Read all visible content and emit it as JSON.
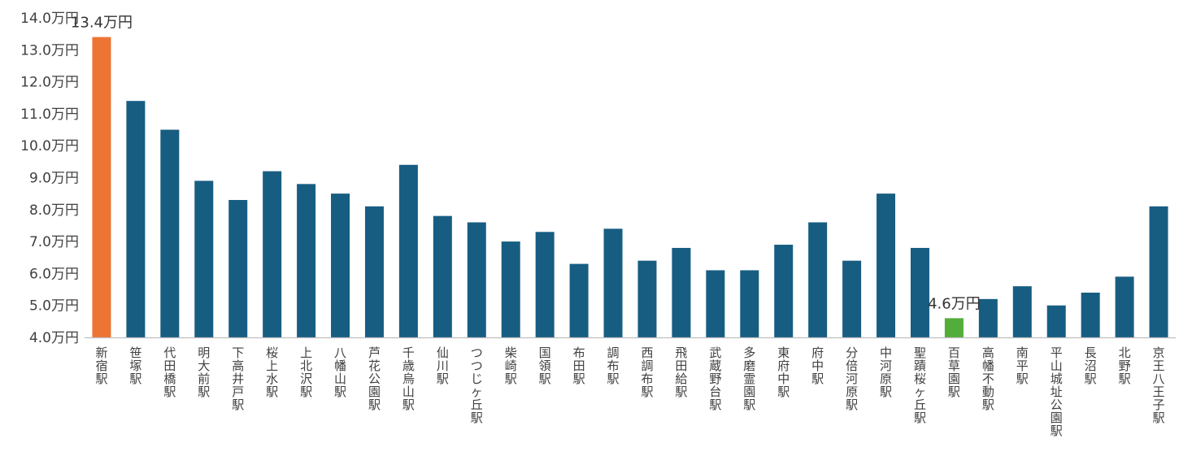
{
  "chart_data": {
    "type": "bar",
    "title": "",
    "xlabel": "",
    "ylabel": "",
    "ylim": [
      4.0,
      14.0
    ],
    "y_unit": "万円",
    "y_ticks": [
      "4.0万円",
      "5.0万円",
      "6.0万円",
      "7.0万円",
      "8.0万円",
      "9.0万円",
      "10.0万円",
      "11.0万円",
      "12.0万円",
      "13.0万円",
      "14.0万円"
    ],
    "y_tick_values": [
      4,
      5,
      6,
      7,
      8,
      9,
      10,
      11,
      12,
      13,
      14
    ],
    "grid": false,
    "legend": "none",
    "categories": [
      "新宿駅",
      "笹塚駅",
      "代田橋駅",
      "明大前駅",
      "下高井戸駅",
      "桜上水駅",
      "上北沢駅",
      "八幡山駅",
      "芦花公園駅",
      "千歳烏山駅",
      "仙川駅",
      "つつじヶ丘駅",
      "柴崎駅",
      "国領駅",
      "布田駅",
      "調布駅",
      "西調布駅",
      "飛田給駅",
      "武蔵野台駅",
      "多磨霊園駅",
      "東府中駅",
      "府中駅",
      "分倍河原駅",
      "中河原駅",
      "聖蹟桜ヶ丘駅",
      "百草園駅",
      "高幡不動駅",
      "南平駅",
      "平山城址公園駅",
      "長沼駅",
      "北野駅",
      "京王八王子駅"
    ],
    "values": [
      13.4,
      11.4,
      10.5,
      8.9,
      8.3,
      9.2,
      8.8,
      8.5,
      8.1,
      9.4,
      7.8,
      7.6,
      7.0,
      7.3,
      6.3,
      7.4,
      6.4,
      6.8,
      6.1,
      6.1,
      6.9,
      7.6,
      6.4,
      8.5,
      6.8,
      4.6,
      5.2,
      5.6,
      5.0,
      5.4,
      5.9,
      8.1
    ],
    "colors": {
      "default": "#175d82",
      "max": "#ed7433",
      "min": "#53ad3a"
    },
    "highlight": {
      "max_index": 0,
      "min_index": 25
    },
    "data_labels": [
      {
        "index": 0,
        "text": "13.4万円"
      },
      {
        "index": 25,
        "text": "4.6万円"
      }
    ]
  }
}
